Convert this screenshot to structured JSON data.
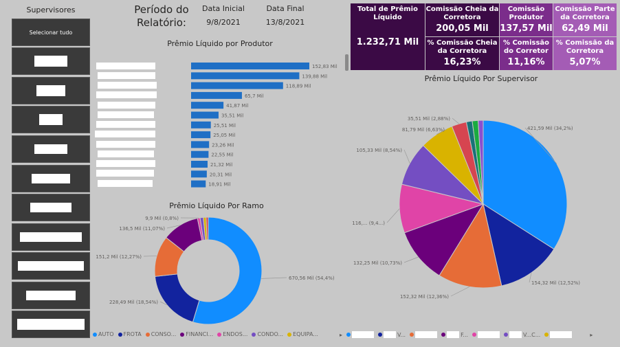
{
  "slicer": {
    "title": "Supervisores",
    "select_all": "Selecionar tudo"
  },
  "period": {
    "label": "Período do Relatório:",
    "start_head": "Data Inicial",
    "start_val": "9/8/2021",
    "end_head": "Data Final",
    "end_val": "13/8/2021"
  },
  "kpis": {
    "total_label": "Total de Prêmio Líquido",
    "total_value": "1.232,71 Mil",
    "cheia_label": "Comissão Cheia da Corretora",
    "cheia_value": "200,05 Mil",
    "produtor_label": "Comissão Produtor",
    "produtor_value": "137,57 Mil",
    "parte_label": "Comissão Parte da Corretora",
    "parte_value": "62,49 Mil",
    "pct_cheia_label": "% Comissão Cheia da Corretora",
    "pct_cheia_value": "16,23%",
    "pct_corretor_label": "% Comissão do Corretor",
    "pct_corretor_value": "11,16%",
    "pct_corretora_label": "% Comissão da Corretora",
    "pct_corretora_value": "5,07%",
    "colors": {
      "dark": "#3b0a45",
      "mid": "#7b2d8b",
      "light": "#a45cb5"
    }
  },
  "chart_data": [
    {
      "type": "bar",
      "title": "Prêmio Líquido por Produtor",
      "values": [
        152.83,
        139.88,
        118.89,
        65.7,
        41.87,
        35.51,
        25.51,
        25.05,
        23.26,
        22.55,
        21.32,
        20.31,
        18.91
      ],
      "labels": [
        "152,83 Mil",
        "139,88 Mil",
        "118,89 Mil",
        "65,7 Mil",
        "41,87 Mil",
        "35,51 Mil",
        "25,51 Mil",
        "25,05 Mil",
        "23,26 Mil",
        "22,55 Mil",
        "21,32 Mil",
        "20,31 Mil",
        "18,91 Mil"
      ],
      "color": "#1f6fc5"
    },
    {
      "type": "pie",
      "title": "Prêmio Líquido Por Ramo",
      "donut": true,
      "values": [
        670.56,
        228.49,
        151.2,
        136.5,
        9.9,
        12,
        10,
        8
      ],
      "labels": [
        "670,56 Mil (54,4%)",
        "228,49 Mil (18,54%)",
        "151,2 Mil (12,27%)",
        "136,5 Mil (11,07%)",
        "9,9 Mil (0,8%)",
        "",
        "",
        ""
      ],
      "colors": [
        "#118dff",
        "#12239e",
        "#e66c37",
        "#6b007b",
        "#e044a7",
        "#744ec2",
        "#d9b300",
        "#d64550"
      ],
      "legend": [
        "AUTO",
        "FROTA",
        "CONSO...",
        "FINANCI...",
        "ENDOS...",
        "CONDO...",
        "EQUIPA..."
      ]
    },
    {
      "type": "pie",
      "title": "Prêmio Líquido Por Supervisor",
      "values": [
        421.59,
        154.32,
        152.32,
        132.25,
        116,
        105.33,
        81.79,
        35.51,
        14,
        14,
        12
      ],
      "labels": [
        "421,59 Mil (34,2%)",
        "154,32 Mil (12,52%)",
        "152,32 Mil (12,36%)",
        "132,25 Mil (10,73%)",
        "116,... (9,4...)",
        "105,33 Mil (8,54%)",
        "81,79 Mil (6,63%)",
        "35,51 Mil (2,88%)",
        "",
        "",
        ""
      ],
      "colors": [
        "#118dff",
        "#12239e",
        "#e66c37",
        "#6b007b",
        "#e044a7",
        "#744ec2",
        "#d9b300",
        "#d64550",
        "#197278",
        "#1aab40",
        "#8a4fd0"
      ],
      "legend": [
        "",
        "V...",
        "",
        "F...",
        "",
        "V...C...",
        ""
      ]
    }
  ]
}
